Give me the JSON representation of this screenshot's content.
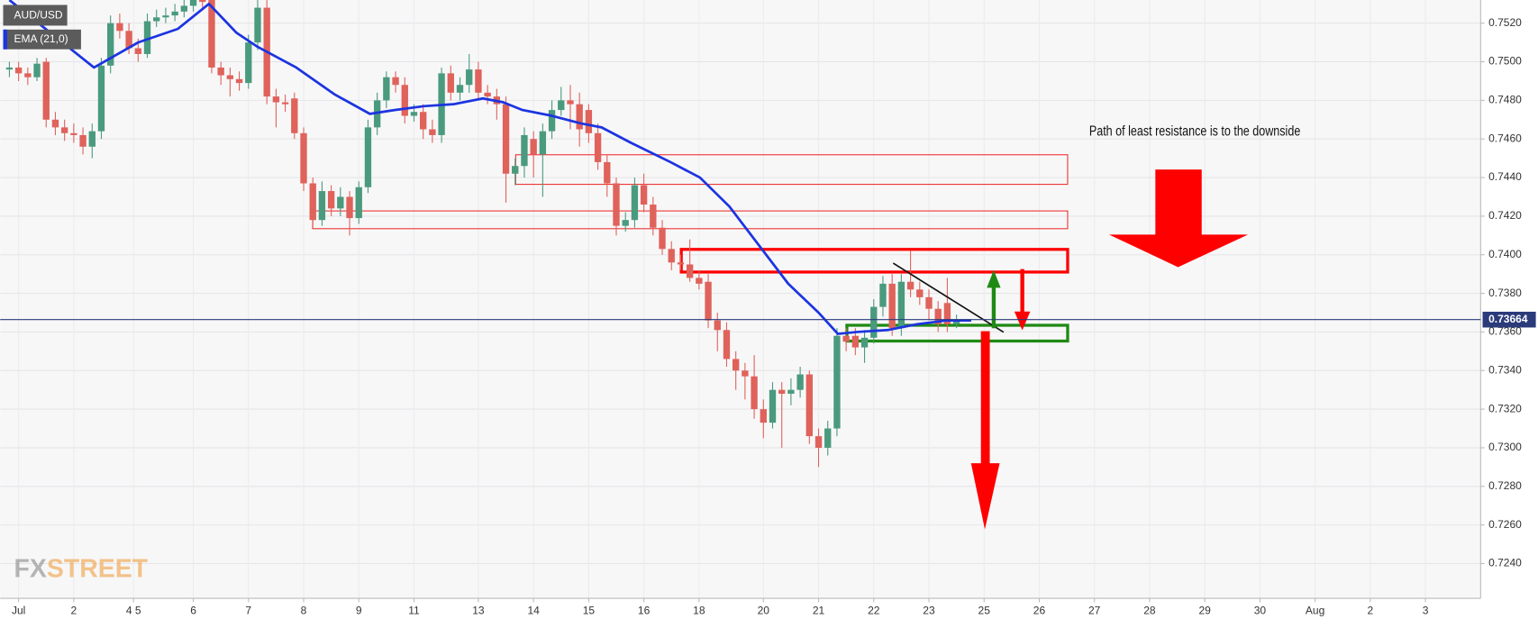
{
  "chart_data": {
    "type": "candlestick",
    "annotation": "Path of least resistance  is to the downside",
    "watermark": [
      "FX",
      "STREET"
    ],
    "last_price": 0.73664,
    "grid": true,
    "xlim": [
      -1,
      160
    ],
    "ylim": [
      0.7222,
      0.7532
    ],
    "yticks": [
      {
        "value": 0.724,
        "label": "0.7240"
      },
      {
        "value": 0.726,
        "label": "0.7260"
      },
      {
        "value": 0.728,
        "label": "0.7280"
      },
      {
        "value": 0.73,
        "label": "0.7300"
      },
      {
        "value": 0.732,
        "label": "0.7320"
      },
      {
        "value": 0.734,
        "label": "0.7340"
      },
      {
        "value": 0.736,
        "label": "0.7360"
      },
      {
        "value": 0.738,
        "label": "0.7380"
      },
      {
        "value": 0.74,
        "label": "0.7400"
      },
      {
        "value": 0.742,
        "label": "0.7420"
      },
      {
        "value": 0.744,
        "label": "0.7440"
      },
      {
        "value": 0.746,
        "label": "0.7460"
      },
      {
        "value": 0.748,
        "label": "0.7480"
      },
      {
        "value": 0.75,
        "label": "0.7500"
      },
      {
        "value": 0.752,
        "label": "0.7520"
      }
    ],
    "xticks": [
      {
        "value": 1,
        "label": "Jul"
      },
      {
        "value": 7,
        "label": "2"
      },
      {
        "value": 13.5,
        "label": "4 5"
      },
      {
        "value": 20,
        "label": "6"
      },
      {
        "value": 26,
        "label": "7"
      },
      {
        "value": 32,
        "label": "8"
      },
      {
        "value": 38,
        "label": "9"
      },
      {
        "value": 44,
        "label": "11"
      },
      {
        "value": 51,
        "label": "13"
      },
      {
        "value": 57,
        "label": "14"
      },
      {
        "value": 63,
        "label": "15"
      },
      {
        "value": 69,
        "label": "16"
      },
      {
        "value": 75,
        "label": "18"
      },
      {
        "value": 82,
        "label": "20"
      },
      {
        "value": 88,
        "label": "21"
      },
      {
        "value": 94,
        "label": "22"
      },
      {
        "value": 100,
        "label": "23"
      },
      {
        "value": 106,
        "label": "25"
      },
      {
        "value": 112,
        "label": "26"
      },
      {
        "value": 118,
        "label": "27"
      },
      {
        "value": 124,
        "label": "28"
      },
      {
        "value": 130,
        "label": "29"
      },
      {
        "value": 136,
        "label": "30"
      },
      {
        "value": 142,
        "label": "Aug"
      },
      {
        "value": 148,
        "label": "2"
      },
      {
        "value": 154,
        "label": "3"
      }
    ],
    "series": [
      {
        "name": "AUD/USD",
        "type": "candlestick",
        "up_color": "#4a9a7e",
        "down_color": "#df625b",
        "x": [
          0,
          1,
          2,
          3,
          4,
          5,
          6,
          7,
          8,
          9,
          10,
          11,
          12,
          13,
          14,
          15,
          16,
          17,
          18,
          19,
          20,
          21,
          22,
          23,
          24,
          25,
          26,
          27,
          28,
          29,
          30,
          31,
          32,
          33,
          34,
          35,
          36,
          37,
          38,
          39,
          40,
          41,
          42,
          43,
          44,
          45,
          46,
          47,
          48,
          49,
          50,
          51,
          52,
          53,
          54,
          55,
          56,
          57,
          58,
          59,
          60,
          61,
          62,
          63,
          64,
          65,
          66,
          67,
          68,
          69,
          70,
          71,
          72,
          73,
          74,
          75,
          76,
          77,
          78,
          79,
          80,
          81,
          82,
          83,
          84,
          85,
          86,
          87,
          88,
          89,
          90,
          91,
          92,
          93,
          94,
          95,
          96,
          97,
          98,
          99,
          100,
          101,
          102,
          103
        ],
        "open": [
          0.7496,
          0.7497,
          0.7494,
          0.7492,
          0.75,
          0.747,
          0.7466,
          0.7463,
          0.7462,
          0.7456,
          0.7464,
          0.7498,
          0.752,
          0.7516,
          0.7507,
          0.7504,
          0.7521,
          0.7523,
          0.7524,
          0.7526,
          0.7529,
          0.7534,
          0.7532,
          0.7497,
          0.7493,
          0.7491,
          0.7489,
          0.751,
          0.7528,
          0.7482,
          0.7479,
          0.7481,
          0.7463,
          0.7437,
          0.7418,
          0.7433,
          0.7424,
          0.743,
          0.7419,
          0.7435,
          0.7466,
          0.748,
          0.7492,
          0.7488,
          0.7472,
          0.7474,
          0.7465,
          0.7462,
          0.7494,
          0.7484,
          0.7488,
          0.7496,
          0.7484,
          0.7482,
          0.7478,
          0.7442,
          0.7446,
          0.746,
          0.7452,
          0.7464,
          0.7475,
          0.748,
          0.7478,
          0.7475,
          0.7463,
          0.7448,
          0.7437,
          0.7415,
          0.7418,
          0.7436,
          0.7426,
          0.7414,
          0.7403,
          0.7396,
          0.7395,
          0.7388,
          0.7386,
          0.7366,
          0.7361,
          0.7346,
          0.734,
          0.7337,
          0.732,
          0.7313,
          0.733,
          0.7328,
          0.733,
          0.7338,
          0.7306,
          0.73,
          0.731,
          0.7358,
          0.7358,
          0.7352,
          0.7357,
          0.7373,
          0.7385,
          0.7362,
          0.7386,
          0.7382,
          0.7378,
          0.7372,
          0.7375,
          0.7364
        ],
        "high": [
          0.75,
          0.75,
          0.7497,
          0.7502,
          0.7502,
          0.7474,
          0.747,
          0.7468,
          0.7466,
          0.7468,
          0.7502,
          0.7524,
          0.7525,
          0.752,
          0.7512,
          0.7525,
          0.7527,
          0.7528,
          0.753,
          0.7534,
          0.754,
          0.754,
          0.7536,
          0.75,
          0.7497,
          0.7495,
          0.7514,
          0.7532,
          0.7533,
          0.7486,
          0.7483,
          0.7484,
          0.7466,
          0.744,
          0.7438,
          0.7436,
          0.7435,
          0.7433,
          0.7438,
          0.747,
          0.7484,
          0.7495,
          0.7495,
          0.7492,
          0.7478,
          0.7478,
          0.747,
          0.7497,
          0.7498,
          0.7492,
          0.7504,
          0.75,
          0.7488,
          0.7486,
          0.7482,
          0.745,
          0.7466,
          0.7464,
          0.7468,
          0.748,
          0.7487,
          0.7488,
          0.7484,
          0.7478,
          0.7468,
          0.7452,
          0.744,
          0.7422,
          0.744,
          0.7442,
          0.743,
          0.7418,
          0.7407,
          0.74,
          0.7408,
          0.7392,
          0.739,
          0.737,
          0.7365,
          0.735,
          0.7344,
          0.7348,
          0.7325,
          0.7334,
          0.7334,
          0.7336,
          0.7342,
          0.734,
          0.731,
          0.7314,
          0.7362,
          0.7362,
          0.7362,
          0.7361,
          0.7377,
          0.7389,
          0.739,
          0.739,
          0.7402,
          0.7386,
          0.7382,
          0.7376,
          0.7388,
          0.7369
        ],
        "low": [
          0.7492,
          0.749,
          0.7488,
          0.749,
          0.7466,
          0.7462,
          0.7459,
          0.7458,
          0.7452,
          0.745,
          0.746,
          0.7494,
          0.7512,
          0.7504,
          0.75,
          0.7502,
          0.7518,
          0.752,
          0.7521,
          0.7523,
          0.7526,
          0.7527,
          0.7494,
          0.7488,
          0.7482,
          0.7485,
          0.7486,
          0.7506,
          0.7478,
          0.7466,
          0.7474,
          0.746,
          0.7433,
          0.7414,
          0.7415,
          0.742,
          0.742,
          0.741,
          0.7416,
          0.7432,
          0.7462,
          0.7476,
          0.7484,
          0.7468,
          0.7469,
          0.746,
          0.7458,
          0.7458,
          0.748,
          0.748,
          0.7484,
          0.748,
          0.7478,
          0.747,
          0.7427,
          0.7436,
          0.744,
          0.744,
          0.743,
          0.746,
          0.7472,
          0.7465,
          0.7456,
          0.7458,
          0.7444,
          0.743,
          0.741,
          0.7412,
          0.7414,
          0.7422,
          0.741,
          0.74,
          0.7392,
          0.7392,
          0.7386,
          0.7382,
          0.7362,
          0.735,
          0.7342,
          0.733,
          0.7325,
          0.7315,
          0.7305,
          0.731,
          0.73,
          0.7322,
          0.7326,
          0.7302,
          0.729,
          0.7296,
          0.7306,
          0.735,
          0.7348,
          0.7344,
          0.7354,
          0.7368,
          0.7358,
          0.7358,
          0.7378,
          0.7374,
          0.7366,
          0.736,
          0.736,
          0.7362
        ],
        "close": [
          0.7497,
          0.7494,
          0.7492,
          0.7499,
          0.747,
          0.7466,
          0.7463,
          0.7462,
          0.7456,
          0.7464,
          0.7498,
          0.752,
          0.7516,
          0.7507,
          0.7504,
          0.7521,
          0.7523,
          0.7524,
          0.7526,
          0.7529,
          0.7534,
          0.7531,
          0.7497,
          0.7493,
          0.7491,
          0.7489,
          0.751,
          0.7528,
          0.7482,
          0.7479,
          0.7478,
          0.7463,
          0.7437,
          0.7418,
          0.7433,
          0.7424,
          0.743,
          0.7419,
          0.7435,
          0.7466,
          0.748,
          0.7492,
          0.7488,
          0.7472,
          0.7474,
          0.7465,
          0.7462,
          0.7494,
          0.7484,
          0.7488,
          0.7496,
          0.7484,
          0.7482,
          0.7478,
          0.7442,
          0.7446,
          0.7462,
          0.7452,
          0.7464,
          0.7475,
          0.748,
          0.7478,
          0.7465,
          0.7463,
          0.7448,
          0.7437,
          0.7415,
          0.7418,
          0.7436,
          0.7426,
          0.7414,
          0.7403,
          0.7396,
          0.7395,
          0.7388,
          0.7385,
          0.7366,
          0.7361,
          0.7346,
          0.734,
          0.7337,
          0.732,
          0.7313,
          0.733,
          0.7328,
          0.733,
          0.7338,
          0.7306,
          0.73,
          0.731,
          0.7358,
          0.7355,
          0.7352,
          0.7357,
          0.7373,
          0.7385,
          0.7362,
          0.7386,
          0.7382,
          0.7378,
          0.7372,
          0.7364,
          0.7364,
          0.7366
        ]
      },
      {
        "name": "EMA (21,0)",
        "type": "line",
        "color": "#1c34e0",
        "x": [
          0,
          9.2,
          14,
          18.3,
          21.7,
          24.7,
          26.9,
          31.2,
          35.4,
          39.2,
          41.9,
          45.1,
          48.3,
          51.5,
          53.7,
          55.8,
          59,
          62.2,
          64.4,
          67.6,
          71.9,
          75.1,
          78.3,
          81.5,
          84.7,
          88,
          90.1,
          92.2,
          95.5,
          98.7,
          102,
          104.6
        ],
        "values": [
          0.7532,
          0.7497,
          0.751,
          0.7517,
          0.753,
          0.7515,
          0.7508,
          0.7497,
          0.7483,
          0.7473,
          0.7475,
          0.7477,
          0.7478,
          0.7481,
          0.7479,
          0.7475,
          0.7472,
          0.7468,
          0.7466,
          0.7458,
          0.7448,
          0.744,
          0.7425,
          0.7405,
          0.7385,
          0.737,
          0.7359,
          0.736,
          0.7361,
          0.7364,
          0.7366,
          0.7366
        ]
      }
    ]
  }
}
